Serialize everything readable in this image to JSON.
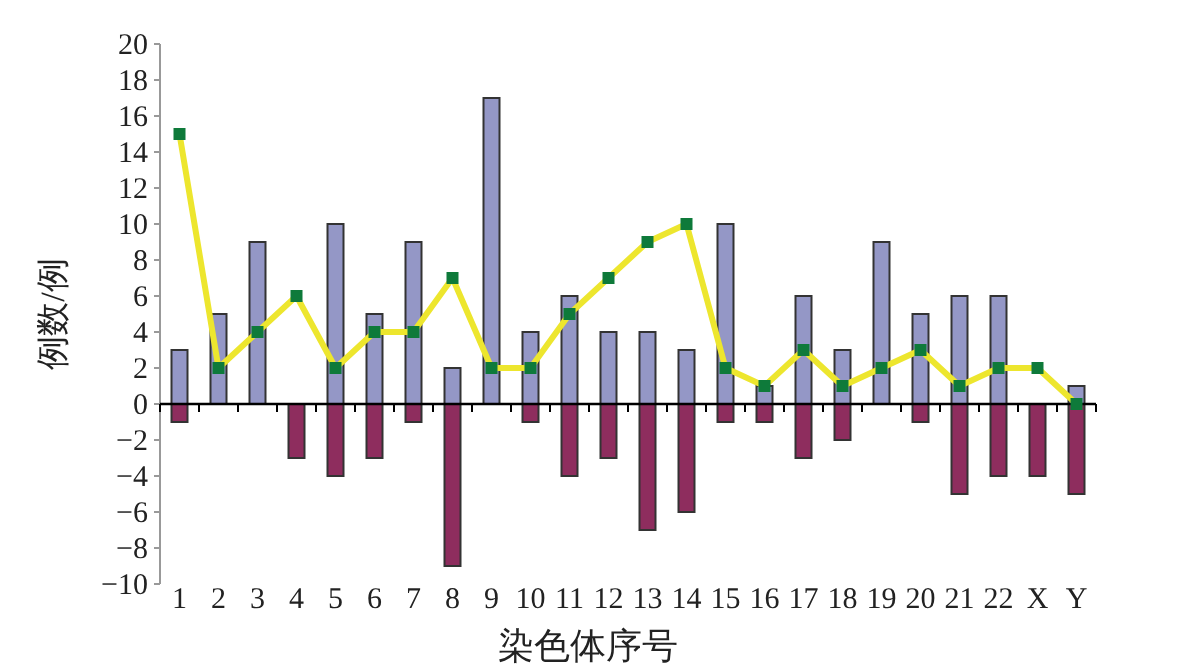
{
  "chart_data": {
    "type": "bar",
    "stacked": true,
    "xlabel": "染色体序号",
    "ylabel": "例数/例",
    "categories": [
      "1",
      "2",
      "3",
      "4",
      "5",
      "6",
      "7",
      "8",
      "9",
      "10",
      "11",
      "12",
      "13",
      "14",
      "15",
      "16",
      "17",
      "18",
      "19",
      "20",
      "21",
      "22",
      "X",
      "Y"
    ],
    "series": [
      {
        "color": "#9497c6",
        "values": [
          3,
          5,
          9,
          null,
          10,
          5,
          9,
          2,
          17,
          4,
          6,
          4,
          4,
          3,
          10,
          1,
          6,
          3,
          9,
          5,
          6,
          6,
          null,
          1
        ]
      },
      {
        "color": "#8e2d5e",
        "values": [
          -1,
          null,
          null,
          -3,
          -4,
          -3,
          -1,
          -9,
          null,
          -1,
          -4,
          -3,
          -7,
          -6,
          -1,
          -1,
          -3,
          -2,
          null,
          -1,
          -5,
          -4,
          -4,
          -5
        ]
      },
      {
        "type": "line",
        "color": "#ede62e",
        "marker": "square",
        "values": [
          15,
          2,
          4,
          6,
          2,
          4,
          4,
          7,
          2,
          2,
          5,
          7,
          9,
          10,
          2,
          1,
          3,
          1,
          2,
          3,
          1,
          2,
          2,
          0
        ]
      }
    ],
    "ylim": [
      -10,
      20
    ],
    "yticks": [
      -10,
      -8,
      -6,
      -4,
      -2,
      0,
      2,
      4,
      6,
      8,
      10,
      12,
      14,
      16,
      18,
      20
    ]
  }
}
